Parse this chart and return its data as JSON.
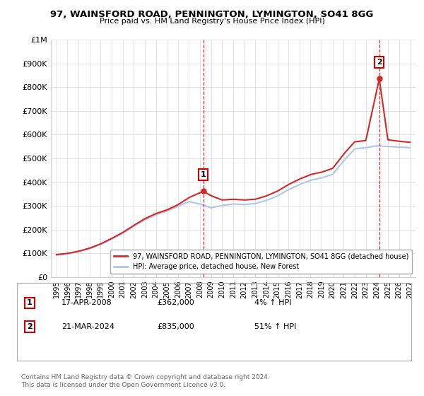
{
  "title": "97, WAINSFORD ROAD, PENNINGTON, LYMINGTON, SO41 8GG",
  "subtitle": "Price paid vs. HM Land Registry's House Price Index (HPI)",
  "legend_line1": "97, WAINSFORD ROAD, PENNINGTON, LYMINGTON, SO41 8GG (detached house)",
  "legend_line2": "HPI: Average price, detached house, New Forest",
  "annotation1_date": "17-APR-2008",
  "annotation1_price": "£362,000",
  "annotation1_hpi": "4% ↑ HPI",
  "annotation2_date": "21-MAR-2024",
  "annotation2_price": "£835,000",
  "annotation2_hpi": "51% ↑ HPI",
  "footer": "Contains HM Land Registry data © Crown copyright and database right 2024.\nThis data is licensed under the Open Government Licence v3.0.",
  "sale1_x": 2008.29,
  "sale1_y": 362000,
  "sale2_x": 2024.22,
  "sale2_y": 835000,
  "ylim": [
    0,
    1000000
  ],
  "xlim": [
    1994.5,
    2027.5
  ],
  "yticks": [
    0,
    100000,
    200000,
    300000,
    400000,
    500000,
    600000,
    700000,
    800000,
    900000,
    1000000
  ],
  "ytick_labels": [
    "£0",
    "£100K",
    "£200K",
    "£300K",
    "£400K",
    "£500K",
    "£600K",
    "£700K",
    "£800K",
    "£900K",
    "£1M"
  ],
  "xticks": [
    1995,
    1996,
    1997,
    1998,
    1999,
    2000,
    2001,
    2002,
    2003,
    2004,
    2005,
    2006,
    2007,
    2008,
    2009,
    2010,
    2011,
    2012,
    2013,
    2014,
    2015,
    2016,
    2017,
    2018,
    2019,
    2020,
    2021,
    2022,
    2023,
    2024,
    2025,
    2026,
    2027
  ],
  "hpi_color": "#aec6e8",
  "price_color": "#d62728",
  "background_color": "#ffffff",
  "grid_color": "#dddddd",
  "years_hpi": [
    1995,
    1996,
    1997,
    1998,
    1999,
    2000,
    2001,
    2002,
    2003,
    2004,
    2005,
    2006,
    2007,
    2008,
    2009,
    2010,
    2011,
    2012,
    2013,
    2014,
    2015,
    2016,
    2017,
    2018,
    2019,
    2020,
    2021,
    2022,
    2023,
    2024,
    2025,
    2026,
    2027
  ],
  "hpi_values": [
    93000,
    98000,
    107000,
    120000,
    138000,
    160000,
    185000,
    215000,
    242000,
    262000,
    278000,
    298000,
    318000,
    308000,
    292000,
    302000,
    308000,
    306000,
    310000,
    323000,
    342000,
    368000,
    390000,
    408000,
    418000,
    433000,
    490000,
    540000,
    545000,
    553000,
    550000,
    548000,
    545000
  ],
  "red_x": [
    1995,
    1996,
    1997,
    1998,
    1999,
    2000,
    2001,
    2002,
    2003,
    2004,
    2005,
    2006,
    2007,
    2008.29,
    2009,
    2010,
    2011,
    2012,
    2013,
    2014,
    2015,
    2016,
    2017,
    2018,
    2019,
    2020,
    2021,
    2022,
    2023,
    2024.22,
    2025,
    2026,
    2027
  ],
  "red_y": [
    95000,
    100000,
    109000,
    122000,
    140000,
    163000,
    188000,
    218000,
    246000,
    268000,
    283000,
    305000,
    335000,
    362000,
    343000,
    325000,
    328000,
    325000,
    328000,
    342000,
    362000,
    390000,
    413000,
    432000,
    442000,
    458000,
    518000,
    570000,
    575000,
    835000,
    578000,
    572000,
    568000
  ]
}
